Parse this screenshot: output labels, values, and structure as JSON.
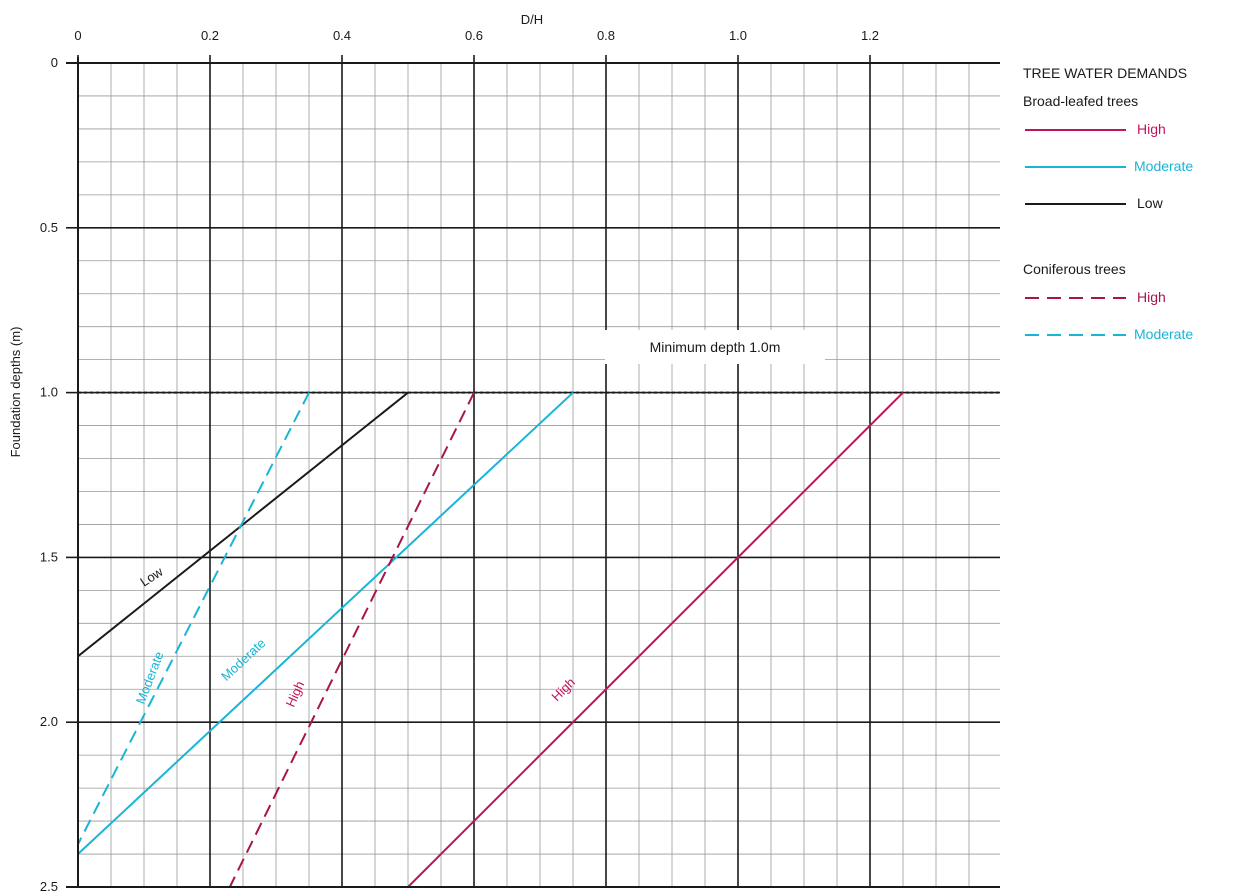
{
  "chart_data": {
    "type": "line",
    "title": "",
    "xlabel": "D/H",
    "ylabel": "Foundation depths (m)",
    "xlim": [
      0,
      1.4
    ],
    "ylim": [
      0,
      2.5
    ],
    "y_inverted": true,
    "x_ticks": [
      {
        "value": 0,
        "label": "0"
      },
      {
        "value": 0.2,
        "label": "0.2"
      },
      {
        "value": 0.4,
        "label": "0.4"
      },
      {
        "value": 0.6,
        "label": "0.6"
      },
      {
        "value": 0.8,
        "label": "0.8"
      },
      {
        "value": 1.0,
        "label": "1.0"
      },
      {
        "value": 1.2,
        "label": "1.2"
      }
    ],
    "y_ticks": [
      {
        "value": 0,
        "label": "0"
      },
      {
        "value": 0.5,
        "label": "0.5"
      },
      {
        "value": 1.0,
        "label": "1.0"
      },
      {
        "value": 1.5,
        "label": "1.5"
      },
      {
        "value": 2.0,
        "label": "2.0"
      },
      {
        "value": 2.5,
        "label": "2.5"
      }
    ],
    "grid": true,
    "series": [
      {
        "name": "High",
        "group": "Broad-leafed trees",
        "color": "#c0145a",
        "dash": "solid",
        "points": [
          [
            1.25,
            1.0
          ],
          [
            0.5,
            2.5
          ]
        ]
      },
      {
        "name": "Moderate",
        "group": "Broad-leafed trees",
        "color": "#19b5d6",
        "dash": "solid",
        "points": [
          [
            0.75,
            1.0
          ],
          [
            0.0,
            2.4
          ]
        ]
      },
      {
        "name": "Low",
        "group": "Broad-leafed trees",
        "color": "#1a1a1a",
        "dash": "solid",
        "points": [
          [
            0.5,
            1.0
          ],
          [
            0.0,
            1.8
          ]
        ]
      },
      {
        "name": "High",
        "group": "Coniferous trees",
        "color": "#a8144f",
        "dash": "dashed",
        "points": [
          [
            0.6,
            1.0
          ],
          [
            0.23,
            2.5
          ]
        ]
      },
      {
        "name": "Moderate",
        "group": "Coniferous trees",
        "color": "#19b5d6",
        "dash": "dashed",
        "points": [
          [
            0.35,
            1.0
          ],
          [
            0.0,
            2.37
          ]
        ]
      }
    ],
    "reference_lines": [
      {
        "y": 1.0,
        "style": "dotted",
        "color": "#1a1a1a"
      }
    ],
    "annotations": [
      {
        "text": "Minimum depth 1.0m"
      }
    ],
    "curve_labels": [
      {
        "text": "Low",
        "color": "#1a1a1a",
        "x": 0.115,
        "y": 1.57,
        "angle": -33
      },
      {
        "text": "Moderate",
        "color": "#19b5d6",
        "x": 0.115,
        "y": 1.87,
        "angle": -69
      },
      {
        "text": "Moderate",
        "color": "#19b5d6",
        "x": 0.255,
        "y": 1.82,
        "angle": -43
      },
      {
        "text": "High",
        "color": "#c0145a",
        "x": 0.335,
        "y": 1.92,
        "angle": -66
      },
      {
        "text": "High",
        "color": "#c0145a",
        "x": 0.74,
        "y": 1.91,
        "angle": -45
      }
    ],
    "legend": {
      "position": "right",
      "title": "TREE WATER DEMANDS",
      "groups": [
        {
          "label": "Broad-leafed trees",
          "items": [
            {
              "label": "High",
              "color": "#c0145a",
              "dash": "solid"
            },
            {
              "label": "Moderate",
              "color": "#19b5d6",
              "dash": "solid"
            },
            {
              "label": "Low",
              "color": "#1a1a1a",
              "dash": "solid"
            }
          ]
        },
        {
          "label": "Coniferous trees",
          "items": [
            {
              "label": "High",
              "color": "#a8144f",
              "dash": "dashed"
            },
            {
              "label": "Moderate",
              "color": "#19b5d6",
              "dash": "dashed"
            }
          ]
        }
      ]
    }
  }
}
